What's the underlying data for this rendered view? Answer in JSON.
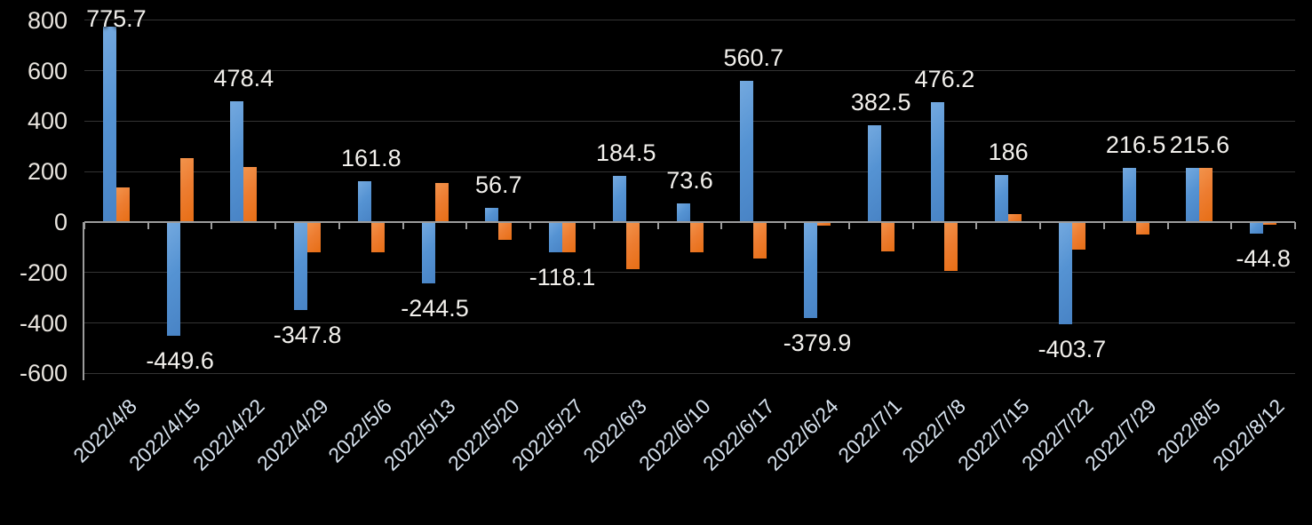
{
  "chart_data": {
    "type": "bar",
    "title": "",
    "legend": "none",
    "grid": true,
    "categories": [
      "2022/4/8",
      "2022/4/15",
      "2022/4/22",
      "2022/4/29",
      "2022/5/6",
      "2022/5/13",
      "2022/5/20",
      "2022/5/27",
      "2022/6/3",
      "2022/6/10",
      "2022/6/17",
      "2022/6/24",
      "2022/7/1",
      "2022/7/8",
      "2022/7/15",
      "2022/7/22",
      "2022/7/29",
      "2022/8/5",
      "2022/8/12"
    ],
    "series": [
      {
        "name": "blue",
        "values": [
          775.7,
          -449.6,
          478.4,
          -347.8,
          161.8,
          -244.5,
          56.7,
          -118.1,
          184.5,
          73.6,
          560.7,
          -379.9,
          382.5,
          476.2,
          186,
          -403.7,
          216.5,
          215.6,
          -44.8
        ],
        "labels": [
          "775.7",
          "-449.6",
          "478.4",
          "-347.8",
          "161.8",
          "-244.5",
          "56.7",
          "-118.1",
          "184.5",
          "73.6",
          "560.7",
          "-379.9",
          "382.5",
          "476.2",
          "186",
          "-403.7",
          "216.5",
          "215.6",
          "-44.8"
        ]
      },
      {
        "name": "orange",
        "values": [
          137,
          252,
          217,
          -119,
          -121,
          155,
          -69,
          -120,
          -186,
          -121,
          -144,
          -13,
          -115,
          -192,
          33,
          -110,
          -48,
          215,
          -12
        ],
        "labels": []
      }
    ],
    "y_axis": {
      "ticks": [
        800,
        600,
        400,
        200,
        0,
        -200,
        -400,
        -600
      ],
      "tick_labels": [
        "800",
        "600",
        "400",
        "200",
        "0",
        "-200",
        "-400",
        "-600"
      ],
      "min": -600,
      "max": 800,
      "step": 200
    },
    "colors": {
      "background": "#000000",
      "blue_light": "#74A9DF",
      "blue_dark": "#4883C5",
      "orange_light": "#F2934C",
      "orange_dark": "#E76E15",
      "gridline": "#343434",
      "axis": "#9C9C9C",
      "data_label": "#F2F0EC",
      "y_tick_label": "#E9E5DF",
      "x_tick_label": "#D8E3EF"
    }
  }
}
